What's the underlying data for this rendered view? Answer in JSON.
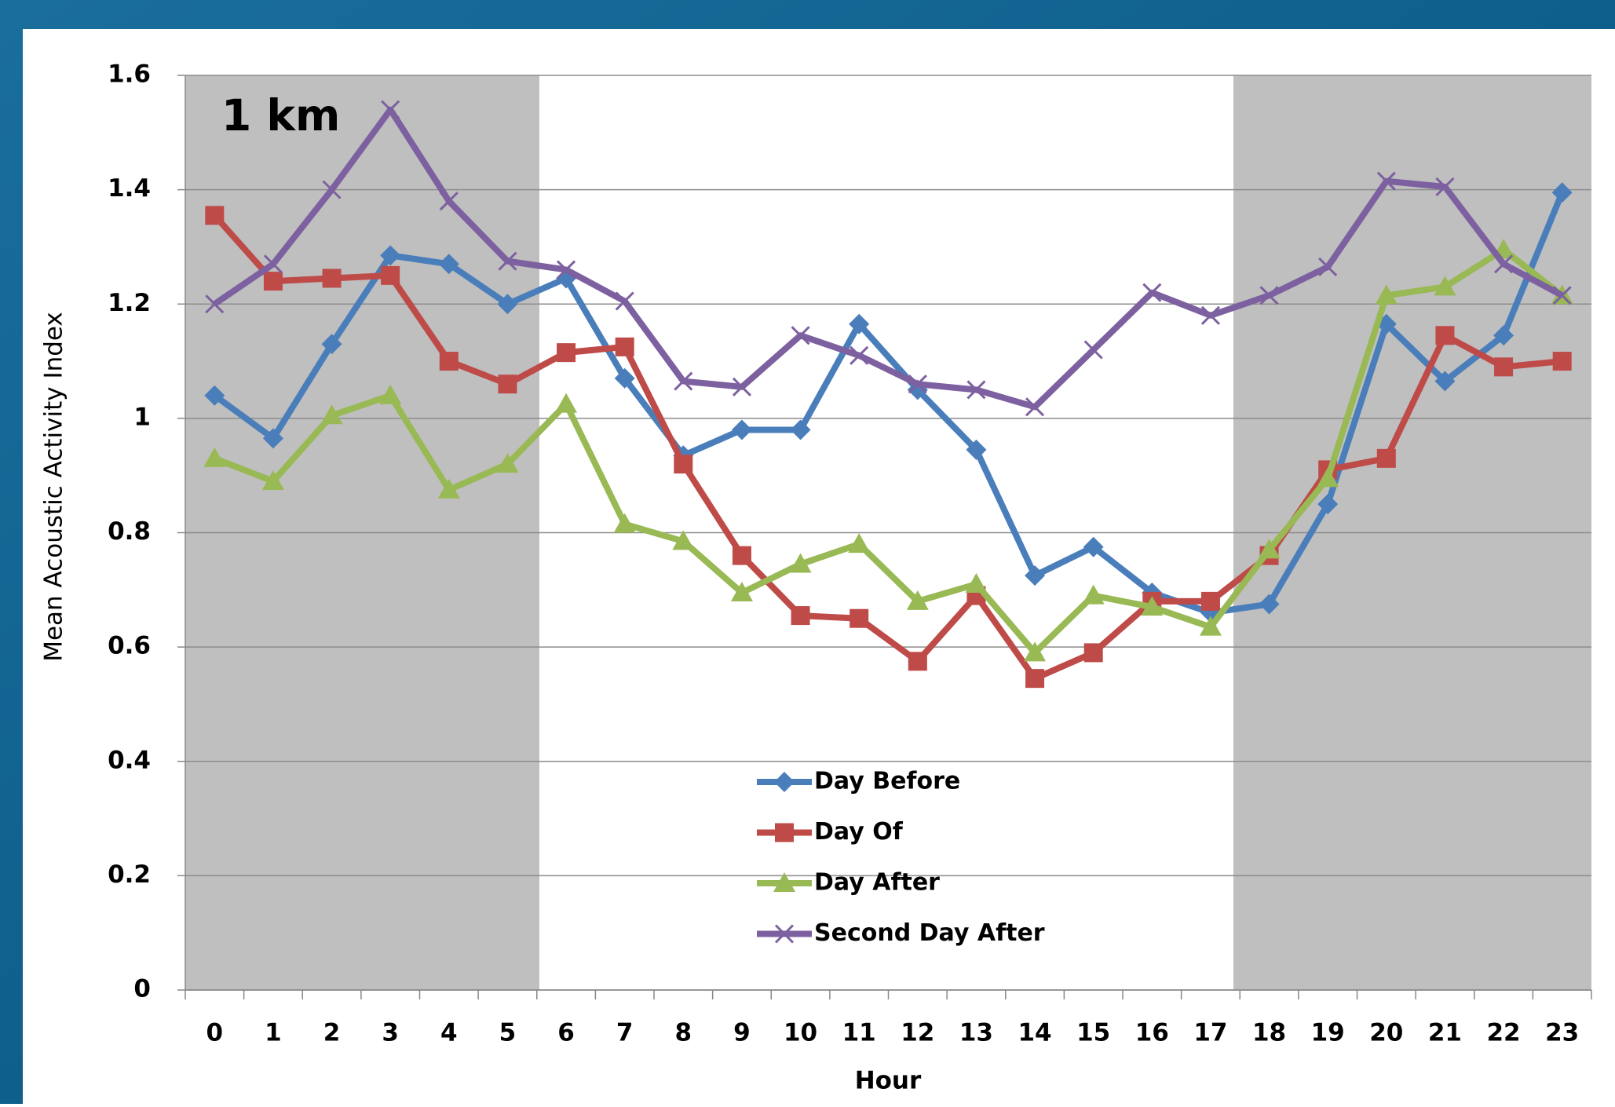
{
  "chart_data": {
    "type": "line",
    "annotation": "1 km",
    "x_label": "Hour",
    "y_label": "Mean Acoustic Activity Index",
    "categories": [
      "0",
      "1",
      "2",
      "3",
      "4",
      "5",
      "6",
      "7",
      "8",
      "9",
      "10",
      "11",
      "12",
      "13",
      "14",
      "15",
      "16",
      "17",
      "18",
      "19",
      "20",
      "21",
      "22",
      "23"
    ],
    "series": [
      {
        "name": "Day Before",
        "color": "#4a7ebb",
        "marker": "diamond",
        "values": [
          1.04,
          0.965,
          1.13,
          1.285,
          1.27,
          1.2,
          1.245,
          1.07,
          0.935,
          0.98,
          0.98,
          1.165,
          1.05,
          0.945,
          0.725,
          0.775,
          0.695,
          0.66,
          0.675,
          0.85,
          1.165,
          1.065,
          1.145,
          1.395
        ]
      },
      {
        "name": "Day Of",
        "color": "#be4b48",
        "marker": "square",
        "values": [
          1.355,
          1.24,
          1.245,
          1.25,
          1.1,
          1.06,
          1.115,
          1.125,
          0.92,
          0.76,
          0.655,
          0.65,
          0.575,
          0.69,
          0.545,
          0.59,
          0.68,
          0.68,
          0.76,
          0.91,
          0.93,
          1.145,
          1.09,
          1.1
        ]
      },
      {
        "name": "Day After",
        "color": "#98b954",
        "marker": "triangle",
        "values": [
          0.93,
          0.89,
          1.005,
          1.04,
          0.875,
          0.92,
          1.025,
          0.815,
          0.785,
          0.695,
          0.745,
          0.78,
          0.68,
          0.71,
          0.59,
          0.69,
          0.67,
          0.635,
          0.77,
          0.895,
          1.215,
          1.23,
          1.295,
          1.215
        ]
      },
      {
        "name": "Second Day After",
        "color": "#7d60a0",
        "marker": "x",
        "values": [
          1.2,
          1.27,
          1.4,
          1.54,
          1.38,
          1.275,
          1.26,
          1.205,
          1.065,
          1.055,
          1.145,
          1.11,
          1.06,
          1.05,
          1.02,
          1.12,
          1.22,
          1.18,
          1.215,
          1.265,
          1.415,
          1.405,
          1.27,
          1.215
        ]
      }
    ],
    "ylim": [
      0,
      1.6
    ],
    "yticks": [
      0,
      0.2,
      0.4,
      0.6,
      0.8,
      1,
      1.2,
      1.4,
      1.6
    ],
    "grid": true
  }
}
